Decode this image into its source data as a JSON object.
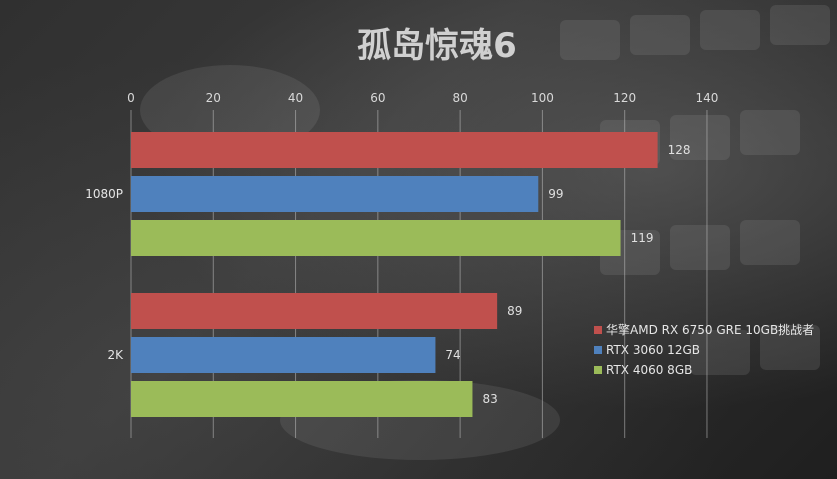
{
  "chart_data": {
    "type": "bar",
    "orientation": "horizontal",
    "title": "孤岛惊魂6",
    "categories": [
      "1080P",
      "2K"
    ],
    "series": [
      {
        "name": "华擎AMD RX 6750 GRE 10GB挑战者",
        "color": "#c0504d",
        "values": [
          128,
          89
        ]
      },
      {
        "name": "RTX 3060 12GB",
        "color": "#4f81bd",
        "values": [
          99,
          74
        ]
      },
      {
        "name": "RTX 4060 8GB",
        "color": "#9bbb59",
        "values": [
          119,
          83
        ]
      }
    ],
    "xlim": [
      0,
      140
    ],
    "xticks": [
      0,
      20,
      40,
      60,
      80,
      100,
      120,
      140
    ],
    "grid": true,
    "legend_position": "right"
  }
}
